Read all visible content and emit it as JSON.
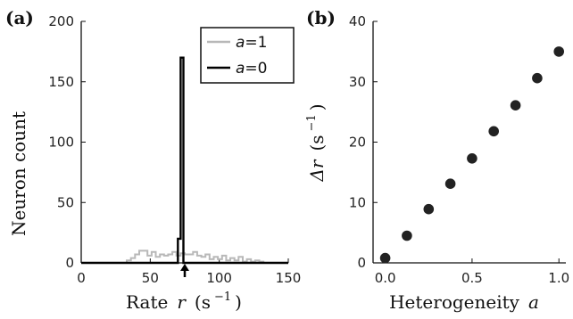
{
  "chart_data": [
    {
      "panel": "(a)",
      "type": "line",
      "xlabel_text": "Rate",
      "xlabel_var": "r",
      "xlabel_unit": "(s",
      "xlabel_exp": "−1",
      "xlabel_close": ")",
      "ylabel": "Neuron count",
      "xlim": [
        0,
        150
      ],
      "ylim": [
        0,
        200
      ],
      "xticks": [
        "0",
        "50",
        "100",
        "150"
      ],
      "yticks": [
        "0",
        "50",
        "100",
        "150",
        "200"
      ],
      "legend": {
        "position": "top-right",
        "var": "a",
        "entries": [
          "=1",
          "=0"
        ]
      },
      "marker": {
        "type": "arrow",
        "x": 75
      },
      "series": [
        {
          "name": "a=1",
          "color": "#b8b8b8",
          "step_edges": [
            30,
            33,
            36,
            39,
            42,
            45,
            48,
            51,
            54,
            57,
            60,
            63,
            66,
            69,
            72,
            75,
            78,
            81,
            84,
            87,
            90,
            93,
            96,
            99,
            102,
            105,
            108,
            111,
            114,
            117,
            120,
            123,
            126,
            129,
            132,
            135
          ],
          "counts": [
            0,
            2,
            4,
            7,
            10,
            10,
            6,
            9,
            5,
            7,
            6,
            7,
            9,
            6,
            8,
            7,
            7,
            9,
            6,
            5,
            7,
            3,
            5,
            3,
            6,
            2,
            4,
            2,
            5,
            1,
            3,
            1,
            2,
            1,
            0
          ]
        },
        {
          "name": "a=0",
          "color": "#000000",
          "step_edges": [
            0,
            70,
            72,
            74,
            76,
            150
          ],
          "counts": [
            0,
            20,
            170,
            0,
            0
          ]
        }
      ]
    },
    {
      "panel": "(b)",
      "type": "scatter",
      "xlabel_text": "Heterogeneity",
      "xlabel_var": "a",
      "ylabel_var": "Δr",
      "ylabel_unit": "(s",
      "ylabel_exp": "−1",
      "ylabel_close": ")",
      "xlim": [
        -0.07,
        1.04
      ],
      "ylim": [
        0,
        40
      ],
      "xticks": [
        "0.0",
        "0.5",
        "1.0"
      ],
      "xtick_values": [
        0,
        0.5,
        1.0
      ],
      "yticks": [
        "0",
        "10",
        "20",
        "30",
        "40"
      ],
      "series": [
        {
          "color": "#222222",
          "x": [
            0,
            0.125,
            0.25,
            0.375,
            0.5,
            0.625,
            0.75,
            0.875,
            1.0
          ],
          "y": [
            0.8,
            4.5,
            8.9,
            13.1,
            17.3,
            21.8,
            26.1,
            30.6,
            35.0
          ]
        }
      ]
    }
  ]
}
